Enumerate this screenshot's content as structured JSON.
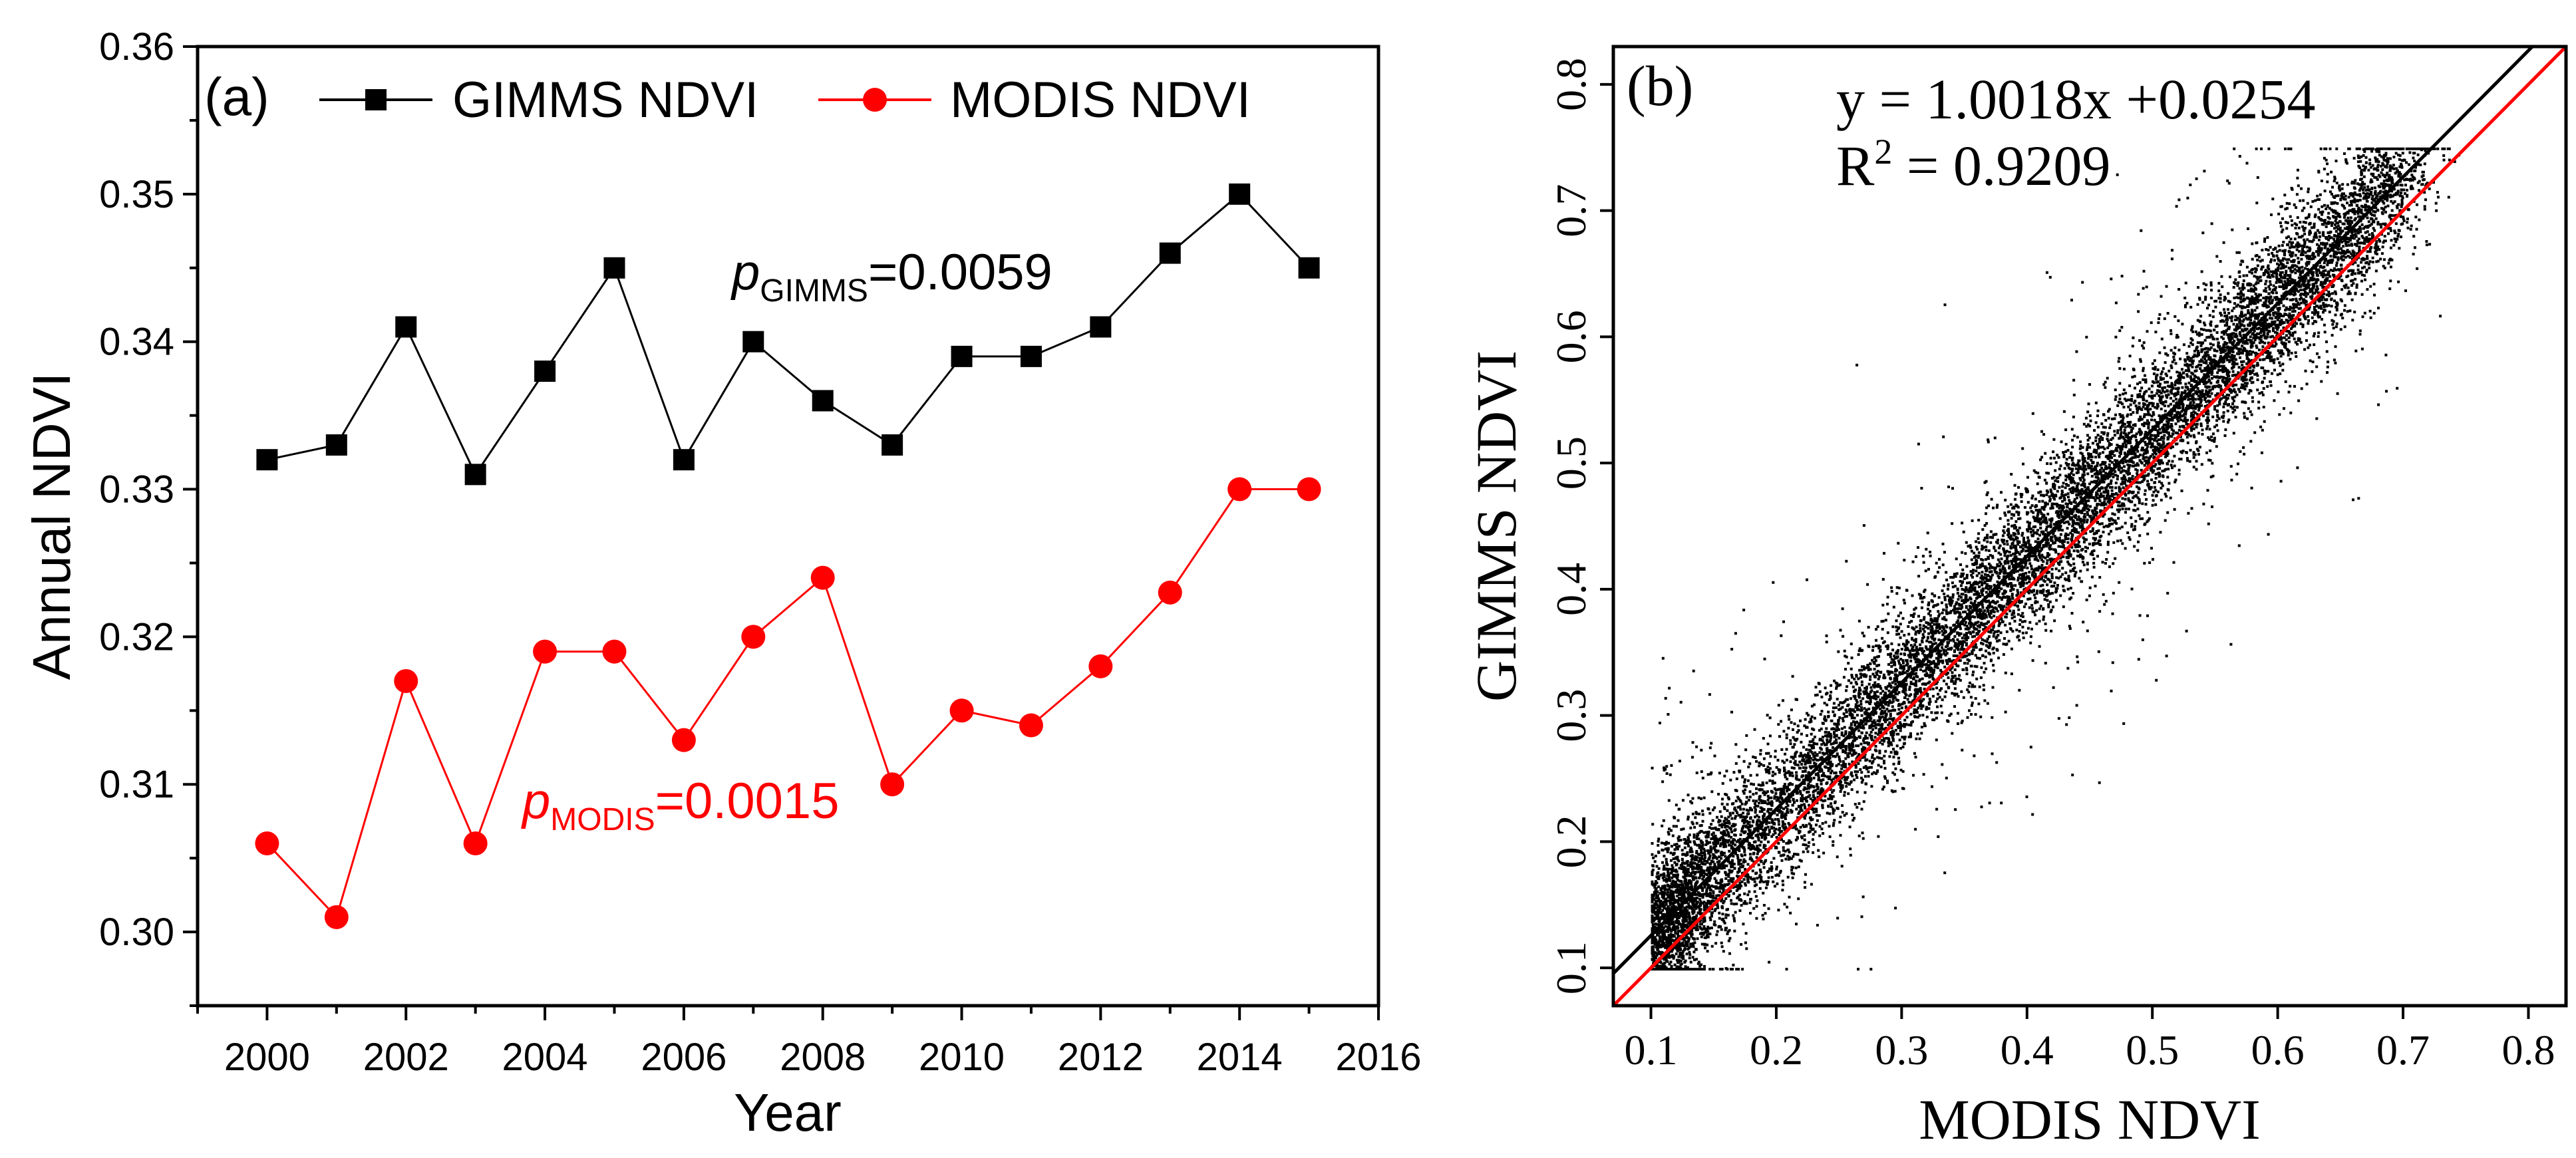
{
  "figure": {
    "panel_a": {
      "label": "(a)",
      "xlabel": "Year",
      "ylabel": "Annual NDVI",
      "legend": [
        {
          "name": "GIMMS NDVI",
          "color": "#000000",
          "marker": "square"
        },
        {
          "name": "MODIS NDVI",
          "color": "#ff0000",
          "marker": "circle"
        }
      ],
      "annotations": {
        "gimms": {
          "p": "p",
          "sub": "GIMMS",
          "value": "=0.0059",
          "color": "#000000"
        },
        "modis": {
          "p": "p",
          "sub": "MODIS",
          "value": "=0.0015",
          "color": "#ff0000"
        }
      }
    },
    "panel_b": {
      "label": "(b)",
      "xlabel": "MODIS NDVI",
      "ylabel": "GIMMS NDVI",
      "equation": "y = 1.0018x +0.0254",
      "r2_label": "R",
      "r2_sup": "2",
      "r2_value": " = 0.9209"
    }
  },
  "chart_data": [
    {
      "type": "line",
      "title": "",
      "xlabel": "Year",
      "ylabel": "Annual NDVI",
      "xlim": [
        1999,
        2016
      ],
      "ylim": [
        0.295,
        0.36
      ],
      "xticks": [
        2000,
        2002,
        2004,
        2006,
        2008,
        2010,
        2012,
        2014,
        2016
      ],
      "yticks": [
        0.3,
        0.31,
        0.32,
        0.33,
        0.34,
        0.35,
        0.36
      ],
      "ytick_labels": [
        "0.30",
        "0.31",
        "0.32",
        "0.33",
        "0.34",
        "0.35",
        "0.36"
      ],
      "x": [
        2000,
        2001,
        2002,
        2003,
        2004,
        2005,
        2006,
        2007,
        2008,
        2009,
        2010,
        2011,
        2012,
        2013,
        2014,
        2015
      ],
      "series": [
        {
          "name": "GIMMS NDVI",
          "color": "#000000",
          "marker": "square",
          "values": [
            0.332,
            0.333,
            0.341,
            0.331,
            0.338,
            0.345,
            0.332,
            0.34,
            0.336,
            0.333,
            0.339,
            0.339,
            0.341,
            0.346,
            0.35,
            0.345
          ]
        },
        {
          "name": "MODIS NDVI",
          "color": "#ff0000",
          "marker": "circle",
          "values": [
            0.306,
            0.301,
            0.317,
            0.306,
            0.319,
            0.319,
            0.313,
            0.32,
            0.324,
            0.31,
            0.315,
            0.314,
            0.318,
            0.323,
            0.33,
            0.33
          ]
        }
      ],
      "legend_position": "top"
    },
    {
      "type": "scatter",
      "title": "",
      "xlabel": "MODIS NDVI",
      "ylabel": "GIMMS NDVI",
      "xlim": [
        0.07,
        0.83
      ],
      "ylim": [
        0.07,
        0.83
      ],
      "xticks": [
        0.1,
        0.2,
        0.3,
        0.4,
        0.5,
        0.6,
        0.7,
        0.8
      ],
      "yticks": [
        0.1,
        0.2,
        0.3,
        0.4,
        0.5,
        0.6,
        0.7,
        0.8
      ],
      "point_count": 12000,
      "points_description_range": {
        "x_min": 0.1,
        "x_max": 0.77,
        "y_min": 0.1,
        "y_max": 0.75
      },
      "lines": [
        {
          "name": "fit",
          "slope": 1.0018,
          "intercept": 0.0254,
          "color": "#000000"
        },
        {
          "name": "1:1",
          "slope": 1.0,
          "intercept": 0.0,
          "color": "#ff0000"
        }
      ],
      "fit_equation": "y = 1.0018x +0.0254",
      "r2": 0.9209
    }
  ]
}
